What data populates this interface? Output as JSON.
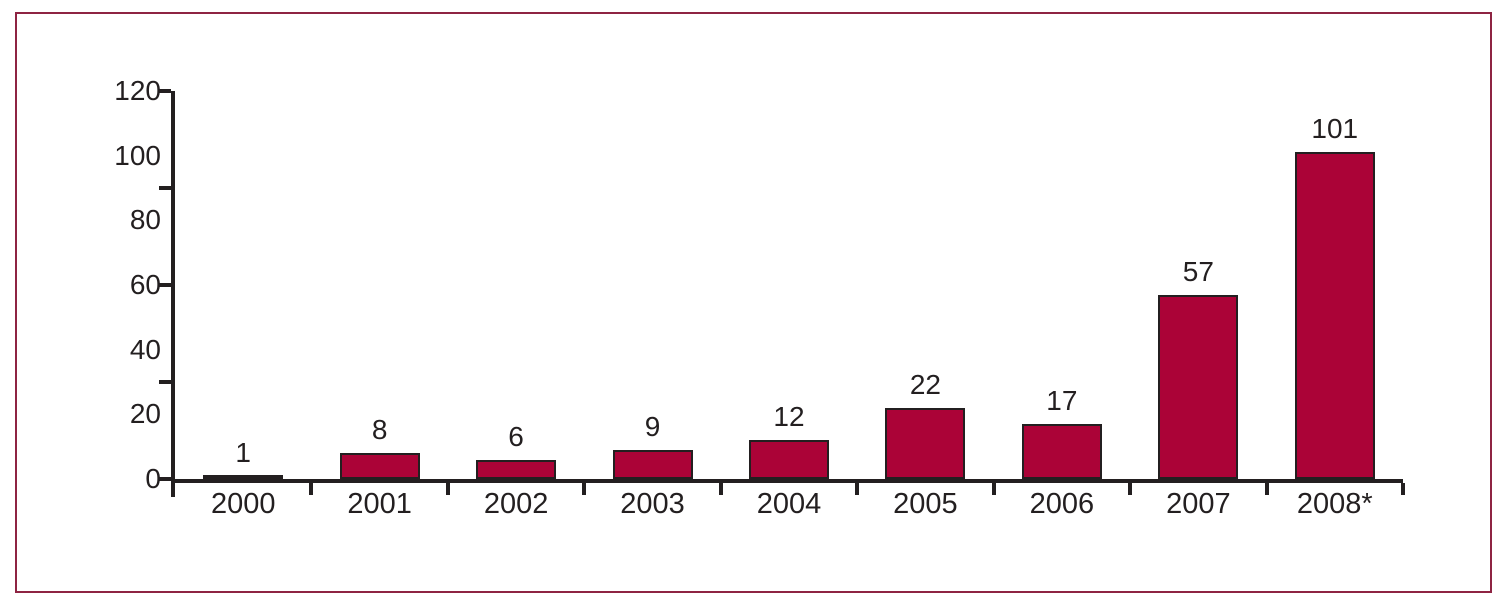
{
  "frame": {
    "border_color": "#8E2443",
    "background_color": "#FFFFFF"
  },
  "chart_data": {
    "type": "bar",
    "title": "",
    "categories": [
      "2000",
      "2001",
      "2002",
      "2003",
      "2004",
      "2005",
      "2006",
      "2007",
      "2008*"
    ],
    "values": [
      1,
      8,
      6,
      9,
      12,
      22,
      17,
      57,
      101
    ],
    "data_labels": [
      "1",
      "8",
      "6",
      "9",
      "12",
      "22",
      "17",
      "57",
      "101"
    ],
    "xlabel": "",
    "ylabel": "",
    "ylim": [
      0,
      120
    ],
    "y_axis_labels": [
      "0",
      "20",
      "40",
      "60",
      "80",
      "100",
      "120"
    ],
    "y_axis_label_values": [
      0,
      20,
      40,
      60,
      80,
      100,
      120
    ],
    "y_tick_values": [
      0,
      30,
      60,
      90,
      120
    ],
    "x_ticks": "category-boundaries",
    "grid": false,
    "legend_position": "none",
    "bar_color": "#AB0337",
    "bar_border_color": "#231F20",
    "axis_color": "#231F20",
    "label_color": "#231F20"
  }
}
